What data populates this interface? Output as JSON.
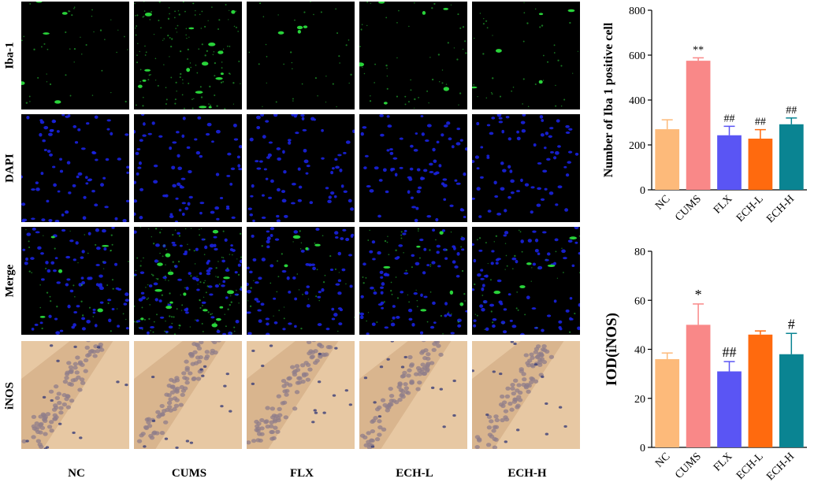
{
  "rows": [
    "Iba-1",
    "DAPI",
    "Merge",
    "iNOS"
  ],
  "columns": [
    "NC",
    "CUMS",
    "FLX",
    "ECH-L",
    "ECH-H"
  ],
  "colors": {
    "NC": "#fdba7a",
    "CUMS": "#f98888",
    "FLX": "#5a55f4",
    "ECH-L": "#ff6a0e",
    "ECH-H": "#0a8492",
    "green_stain": "#29d33a",
    "blue_stain": "#1a22e0",
    "ihc_bg": "#e7c8a3",
    "ihc_cell": "#8f7d8a"
  },
  "chart_data": [
    {
      "type": "bar",
      "title": "",
      "ylabel": "Number of Iba 1 positive cell",
      "xlabel": "",
      "categories": [
        "NC",
        "CUMS",
        "FLX",
        "ECH-L",
        "ECH-H"
      ],
      "values": [
        270,
        575,
        243,
        228,
        292
      ],
      "errors": [
        42,
        13,
        40,
        40,
        28
      ],
      "annotations": [
        "",
        "**",
        "##",
        "##",
        "##"
      ],
      "ylim": [
        0,
        800
      ],
      "yticks": [
        0,
        200,
        400,
        600,
        800
      ]
    },
    {
      "type": "bar",
      "title": "",
      "ylabel": "IOD(iNOS)",
      "xlabel": "",
      "categories": [
        "NC",
        "CUMS",
        "FLX",
        "ECH-L",
        "ECH-H"
      ],
      "values": [
        36,
        50,
        31,
        46,
        38
      ],
      "errors": [
        2.5,
        8.5,
        4,
        1.5,
        8.5
      ],
      "annotations": [
        "",
        "*",
        "##",
        "",
        "#"
      ],
      "ylim": [
        0,
        80
      ],
      "yticks": [
        0,
        20,
        40,
        60,
        80
      ]
    }
  ]
}
